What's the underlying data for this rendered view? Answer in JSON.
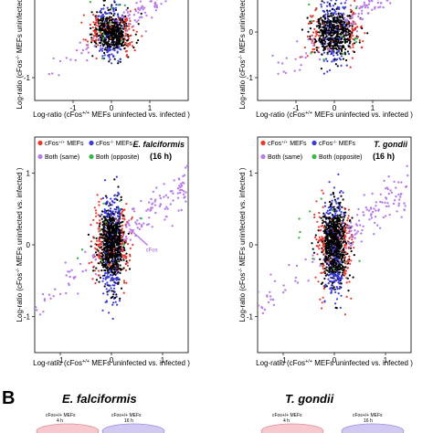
{
  "figure": {
    "panel_b_label": "B",
    "colors": {
      "wt": "#e8392f",
      "ko": "#3a3ad8",
      "both_same": "#b77de8",
      "both_opposite": "#3bb54a",
      "none": "#000000",
      "ring_wt": "#f0a0a6",
      "ring_ko": "#b6a8ea"
    },
    "legend": {
      "wt_label": "cFos+/+ MEFs",
      "ko_label": "cFos-/- MEFs",
      "same_label": "Both (same)",
      "opposite_label": "Both (opposite)"
    },
    "panel_b": {
      "left_title": "E. falciformis",
      "right_title": "T. gondii",
      "left_ellipses": [
        {
          "label": "cFos+/+ MEFs",
          "sublabel": "4 h"
        },
        {
          "label": "cFos+/+ MEFs",
          "sublabel": "16 h"
        }
      ],
      "right_ellipses": [
        {
          "label": "cFos+/+ MEFs",
          "sublabel": "4 h"
        },
        {
          "label": "cFos+/+ MEFs",
          "sublabel": "16 h"
        }
      ]
    }
  },
  "chart_data": [
    {
      "type": "scatter",
      "position": "top-left",
      "title": "",
      "xlabel": "Log-ratio (cFos+/+ MEFs uninfected vs. infected )",
      "ylabel": "Log-ratio (cFos-/- MEFs uninfected vs. infected )",
      "xlim": [
        -2,
        2
      ],
      "ylim": [
        -1.5,
        1.5
      ],
      "x_ticks": [
        -1,
        0,
        1
      ],
      "x_tick_labels": [
        "-1",
        "0",
        "1"
      ],
      "y_ticks": [
        -1
      ],
      "y_tick_labels": [
        "-1"
      ],
      "cloud": {
        "x_sd": 0.25,
        "y_sd": 0.25
      }
    },
    {
      "type": "scatter",
      "position": "top-right",
      "title": "",
      "xlabel": "Log-ratio (cFos+/+ MEFs uninfected vs. infected )",
      "ylabel": "Log-ratio (cFos-/- MEFs uninfected vs. infected )",
      "xlim": [
        -2,
        2
      ],
      "ylim": [
        -1.5,
        1.5
      ],
      "x_ticks": [
        -1,
        0,
        1
      ],
      "x_tick_labels": [
        "-1",
        "0",
        "1"
      ],
      "y_ticks": [
        0,
        -1
      ],
      "y_tick_labels": [
        "0",
        "-1"
      ],
      "cloud": {
        "x_sd": 0.3,
        "y_sd": 0.3
      }
    },
    {
      "type": "scatter",
      "position": "bottom-left",
      "title": "E. falciformis",
      "subtitle": "(16 h)",
      "xlabel": "Log-ratio (cFos+/+ MEFs uninfected vs. infected )",
      "ylabel": "Log-ratio (cFos-/- MEFs uninfected vs. infected )",
      "xlim": [
        -1.5,
        1.5
      ],
      "ylim": [
        -1.5,
        1.5
      ],
      "x_ticks": [
        -1,
        0,
        1
      ],
      "x_tick_labels": [
        "-1",
        "0",
        "1"
      ],
      "y_ticks": [
        1,
        0,
        -1
      ],
      "y_tick_labels": [
        "1",
        "0",
        "-1"
      ],
      "annotation": {
        "text": "cFos",
        "x": 0.6,
        "y": 0.02
      },
      "cloud": {
        "x_sd": 0.14,
        "y_sd": 0.3
      }
    },
    {
      "type": "scatter",
      "position": "bottom-right",
      "title": "T. gondii",
      "subtitle": "(16 h)",
      "xlabel": "Log-ratio (cFos+/+ MEFs uninfected vs. infected )",
      "ylabel": "Log-ratio (cFos-/- MEFs uninfected vs. infected )",
      "xlim": [
        -1.5,
        1.5
      ],
      "ylim": [
        -1.5,
        1.5
      ],
      "x_ticks": [
        -1,
        0,
        1
      ],
      "x_tick_labels": [
        "-1",
        "0",
        "1"
      ],
      "y_ticks": [
        1,
        0,
        -1
      ],
      "y_tick_labels": [
        "1",
        "0",
        "-1"
      ],
      "cloud": {
        "x_sd": 0.14,
        "y_sd": 0.3
      }
    }
  ]
}
